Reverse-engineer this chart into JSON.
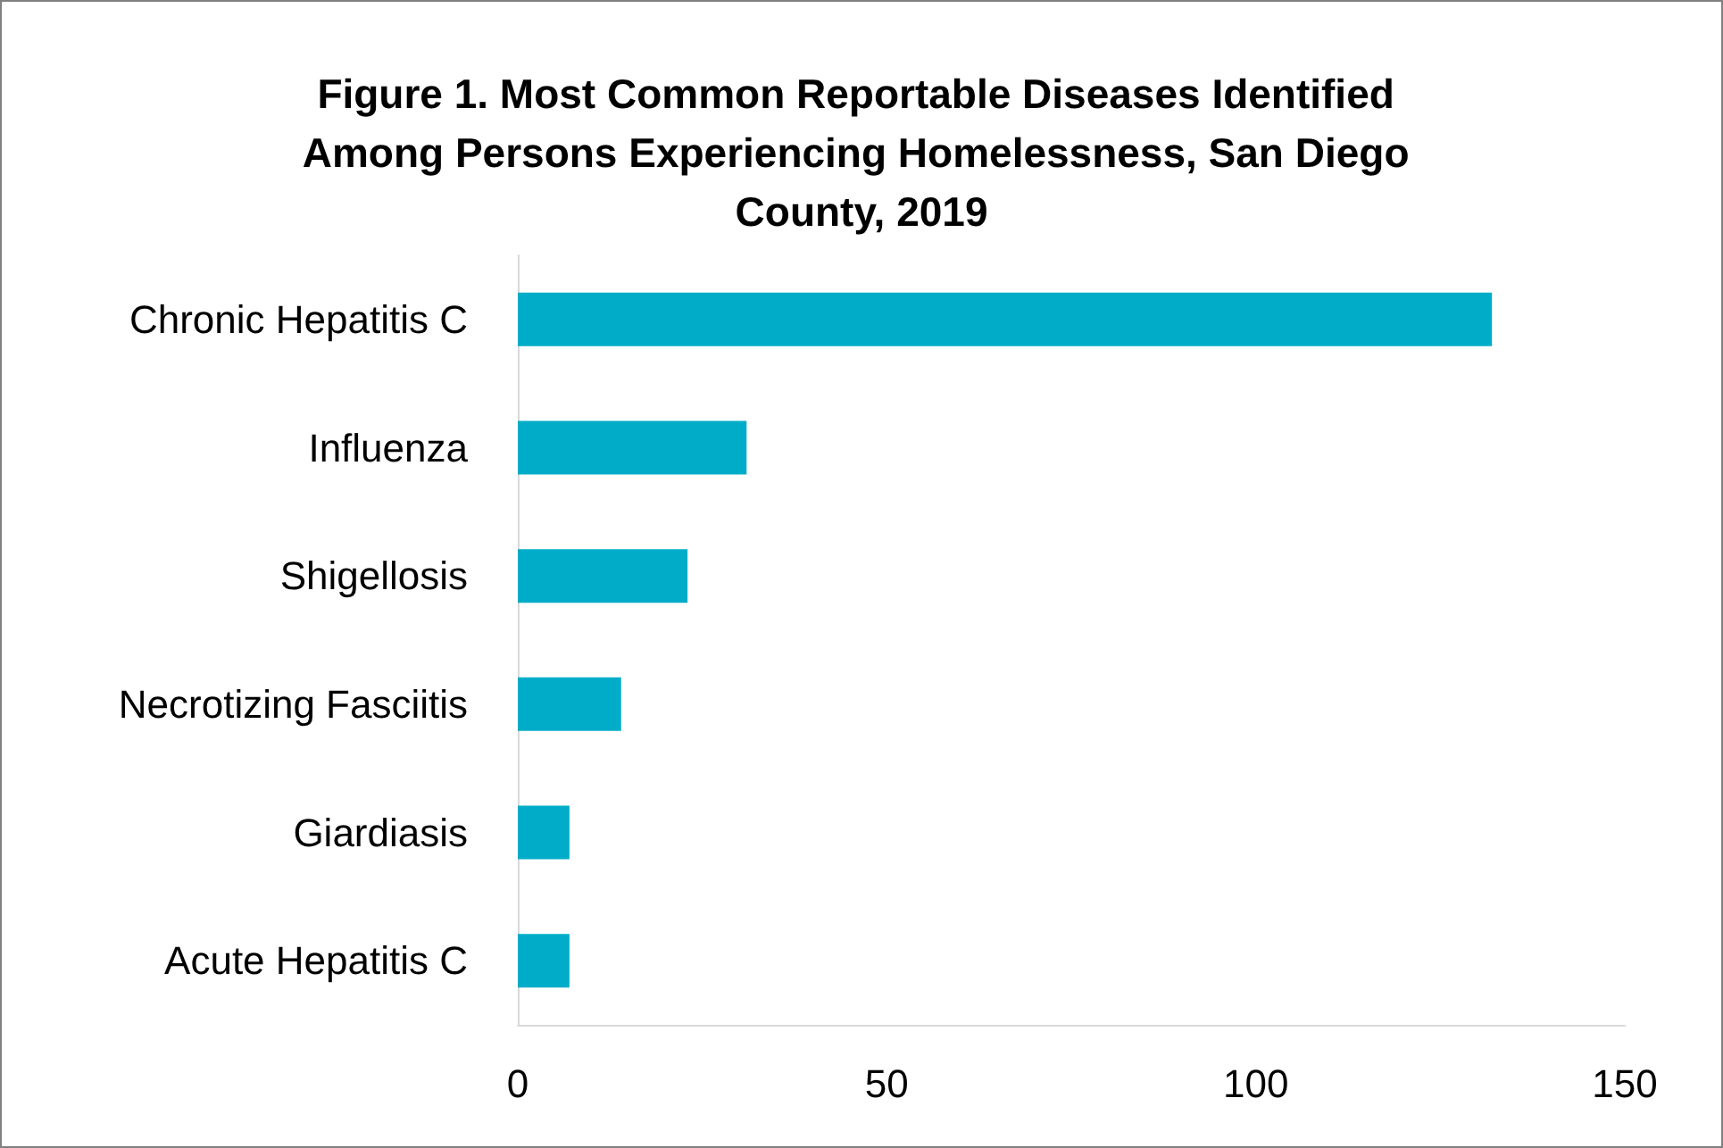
{
  "chart_data": {
    "type": "bar",
    "orientation": "horizontal",
    "title": "Figure 1. Most Common Reportable Diseases Identified Among Persons Experiencing Homelessness, San Diego County, 2019",
    "categories": [
      "Chronic Hepatitis C",
      "Influenza",
      "Shigellosis",
      "Necrotizing Fasciitis",
      "Giardiasis",
      "Acute Hepatitis C"
    ],
    "values": [
      132,
      31,
      23,
      14,
      7,
      7
    ],
    "color": "#00acc8",
    "xlim": [
      0,
      150
    ],
    "xticks": [
      0,
      50,
      100,
      150
    ],
    "grid": false
  }
}
